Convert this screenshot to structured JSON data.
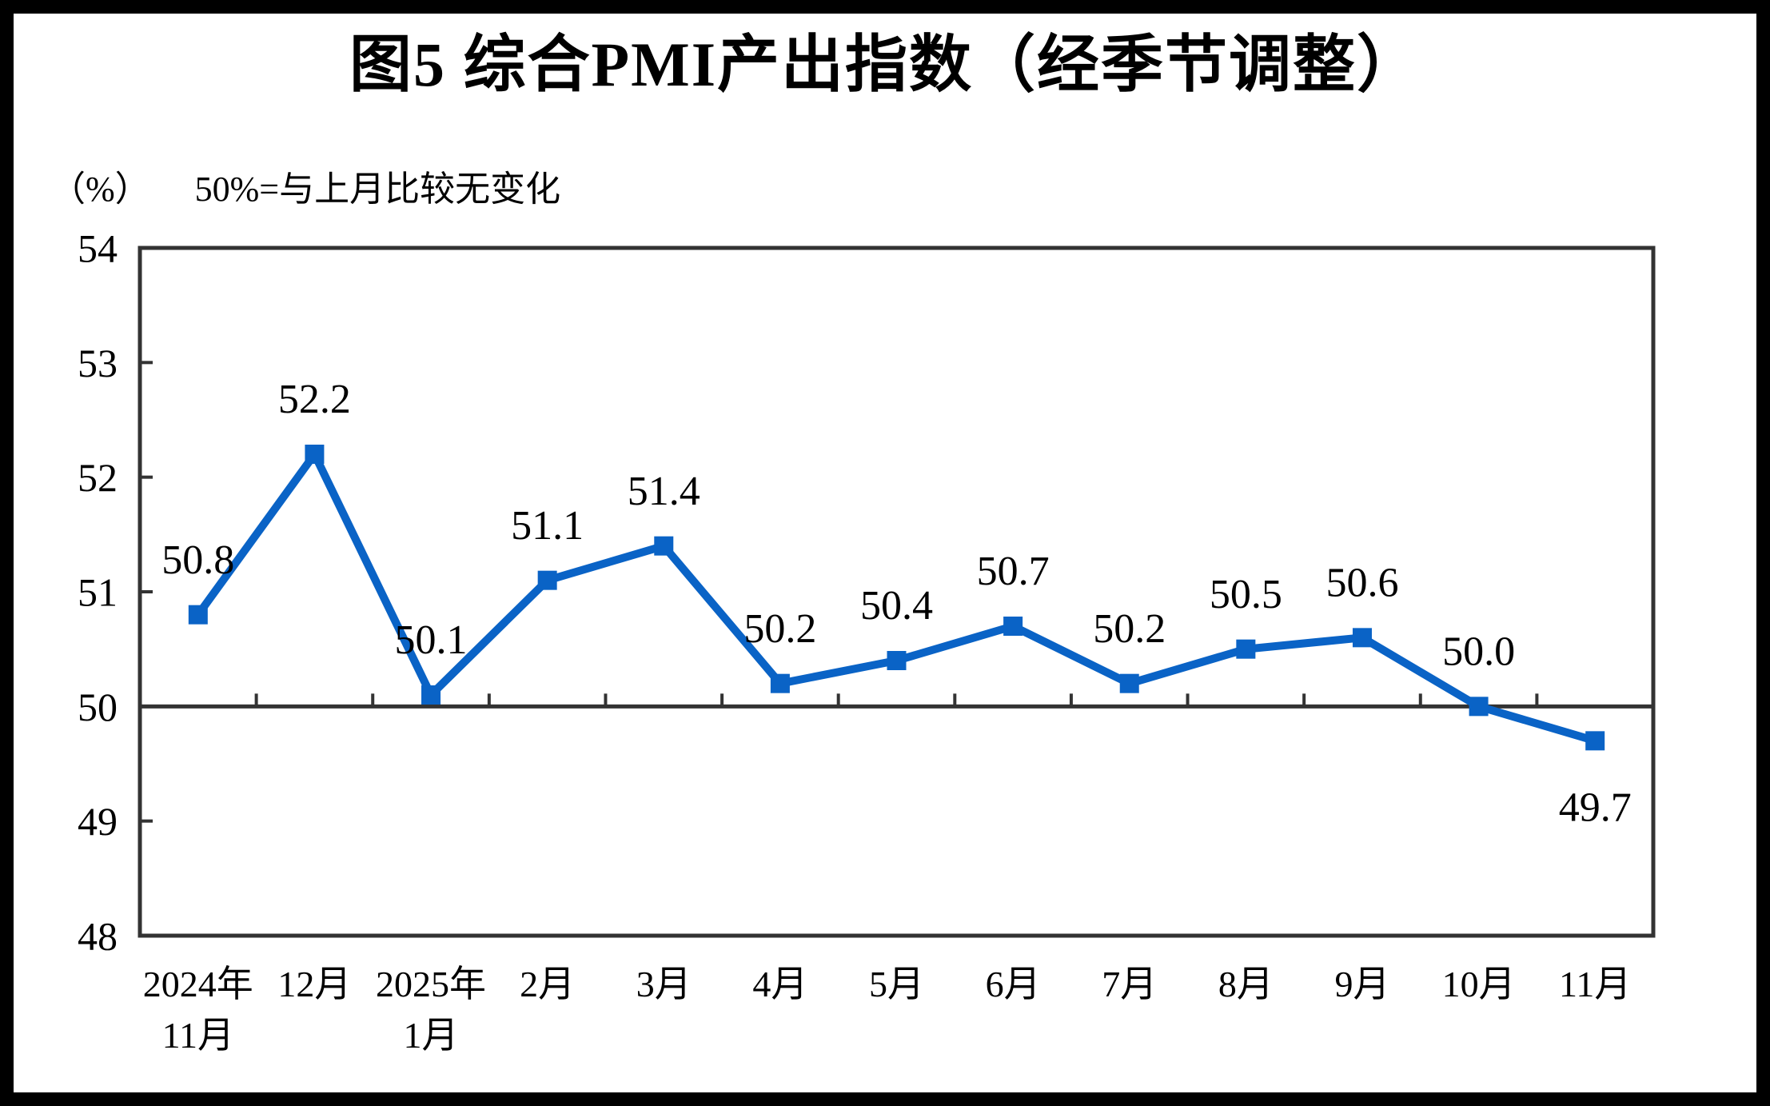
{
  "title": "图5 综合PMI产出指数（经季节调整）",
  "subtitle": {
    "unit_label": "（%）",
    "note": "50%=与上月比较无变化"
  },
  "chart_data": {
    "type": "line",
    "title": "图5 综合PMI产出指数（经季节调整）",
    "annotation": "50%=与上月比较无变化",
    "unit": "%",
    "categories": [
      "2024年\n11月",
      "12月",
      "2025年\n1月",
      "2月",
      "3月",
      "4月",
      "5月",
      "6月",
      "7月",
      "8月",
      "9月",
      "10月",
      "11月"
    ],
    "values": [
      50.8,
      52.2,
      50.1,
      51.1,
      51.4,
      50.2,
      50.4,
      50.7,
      50.2,
      50.5,
      50.6,
      50.0,
      49.7
    ],
    "ylim": [
      48,
      54
    ],
    "yticks": [
      48,
      49,
      50,
      51,
      52,
      53,
      54
    ],
    "reference_line": 50,
    "grid": false,
    "legend": "none",
    "marker": "square",
    "data_labels": "above",
    "labels_below_indices": [
      12
    ],
    "line_color": "#0A63C6",
    "axis_color": "#333333",
    "text_color": "#000000"
  }
}
